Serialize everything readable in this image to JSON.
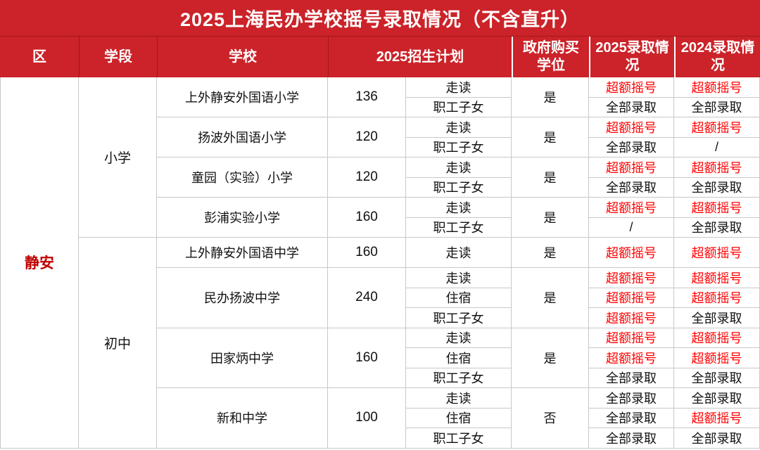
{
  "title": "2025上海民办学校摇号录取情况（不含直升）",
  "header": {
    "columns": [
      "区",
      "学段",
      "学校",
      "2025招生计划",
      "政府购买学位",
      "2025录取情况",
      "2024录取情况"
    ]
  },
  "statuses": {
    "oversubscribed_lottery": "超额摇号",
    "all_admitted": "全部录取",
    "not_applicable": "/"
  },
  "table": {
    "district": "静安",
    "stages": [
      {
        "label": "小学",
        "schools": [
          {
            "name": "上外静安外国语小学",
            "plan": "136",
            "gov": "是",
            "subs": [
              {
                "cat": "走读",
                "r2025": "超额摇号",
                "r2024": "超额摇号"
              },
              {
                "cat": "职工子女",
                "r2025": "全部录取",
                "r2024": "全部录取"
              }
            ]
          },
          {
            "name": "扬波外国语小学",
            "plan": "120",
            "gov": "是",
            "subs": [
              {
                "cat": "走读",
                "r2025": "超额摇号",
                "r2024": "超额摇号"
              },
              {
                "cat": "职工子女",
                "r2025": "全部录取",
                "r2024": "/"
              }
            ]
          },
          {
            "name": "童园（实验）小学",
            "plan": "120",
            "gov": "是",
            "subs": [
              {
                "cat": "走读",
                "r2025": "超额摇号",
                "r2024": "超额摇号"
              },
              {
                "cat": "职工子女",
                "r2025": "全部录取",
                "r2024": "全部录取"
              }
            ]
          },
          {
            "name": "彭浦实验小学",
            "plan": "160",
            "gov": "是",
            "subs": [
              {
                "cat": "走读",
                "r2025": "超额摇号",
                "r2024": "超额摇号"
              },
              {
                "cat": "职工子女",
                "r2025": "/",
                "r2024": "全部录取"
              }
            ]
          }
        ]
      },
      {
        "label": "初中",
        "schools": [
          {
            "name": "上外静安外国语中学",
            "plan": "160",
            "gov": "是",
            "subs": [
              {
                "cat": "走读",
                "r2025": "超额摇号",
                "r2024": "超额摇号"
              }
            ]
          },
          {
            "name": "民办扬波中学",
            "plan": "240",
            "gov": "是",
            "subs": [
              {
                "cat": "走读",
                "r2025": "超额摇号",
                "r2024": "超额摇号"
              },
              {
                "cat": "住宿",
                "r2025": "超额摇号",
                "r2024": "超额摇号"
              },
              {
                "cat": "职工子女",
                "r2025": "超额摇号",
                "r2024": "全部录取"
              }
            ]
          },
          {
            "name": "田家炳中学",
            "plan": "160",
            "gov": "是",
            "subs": [
              {
                "cat": "走读",
                "r2025": "超额摇号",
                "r2024": "超额摇号"
              },
              {
                "cat": "住宿",
                "r2025": "超额摇号",
                "r2024": "超额摇号"
              },
              {
                "cat": "职工子女",
                "r2025": "全部录取",
                "r2024": "全部录取"
              }
            ]
          },
          {
            "name": "新和中学",
            "plan": "100",
            "gov": "否",
            "subs": [
              {
                "cat": "走读",
                "r2025": "全部录取",
                "r2024": "全部录取"
              },
              {
                "cat": "住宿",
                "r2025": "全部录取",
                "r2024": "超额摇号"
              },
              {
                "cat": "职工子女",
                "r2025": "全部录取",
                "r2024": "全部录取"
              }
            ]
          }
        ]
      }
    ]
  },
  "theme": {
    "header_red": "#CB2329",
    "header_divider": "#A2171D",
    "district_text": "#C00000",
    "lottery_red": "#FF0000",
    "grid": "#C8C8C8",
    "text": "#111111"
  }
}
